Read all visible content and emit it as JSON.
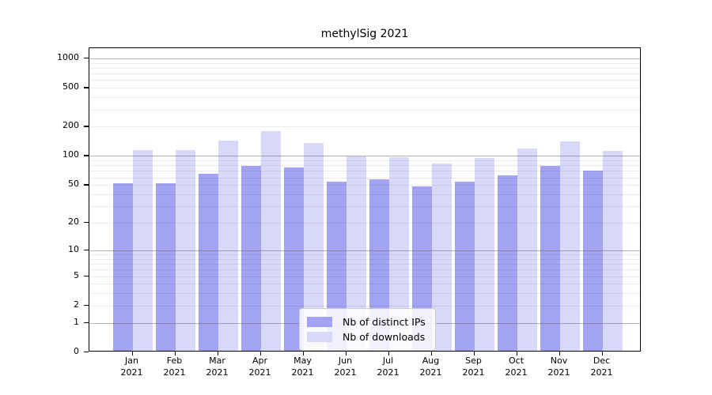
{
  "chart_data": {
    "type": "bar",
    "title": "methylSig 2021",
    "year": "2021",
    "categories": [
      "Jan 2021",
      "Feb 2021",
      "Mar 2021",
      "Apr 2021",
      "May 2021",
      "Jun 2021",
      "Jul 2021",
      "Aug 2021",
      "Sep 2021",
      "Oct 2021",
      "Nov 2021",
      "Dec 2021"
    ],
    "month_labels": [
      "Jan",
      "Feb",
      "Mar",
      "Apr",
      "May",
      "Jun",
      "Jul",
      "Aug",
      "Sep",
      "Oct",
      "Nov",
      "Dec"
    ],
    "series": [
      {
        "name": "Nb of distinct IPs",
        "color": "#a3a3f3",
        "values": [
          50,
          50,
          63,
          76,
          73,
          52,
          55,
          47,
          52,
          61,
          76,
          68
        ]
      },
      {
        "name": "Nb of downloads",
        "color": "#d8d8f8",
        "values": [
          111,
          111,
          140,
          175,
          131,
          95,
          94,
          80,
          92,
          116,
          135,
          109
        ]
      }
    ],
    "y_scale": "log10(1+x)",
    "y_ticks": [
      0,
      1,
      2,
      5,
      10,
      20,
      50,
      100,
      200,
      500,
      1000
    ],
    "ylim": [
      0,
      1360
    ],
    "grid": "horizontal major+minor",
    "legend_position": "lower center"
  },
  "colors": {
    "background": "#ffffff",
    "axis": "#000000",
    "major_grid": "#6e6e6e",
    "minor_grid": "#e8e8e8",
    "legend_border": "#cccccc",
    "legend_bg": "#ffffff"
  }
}
